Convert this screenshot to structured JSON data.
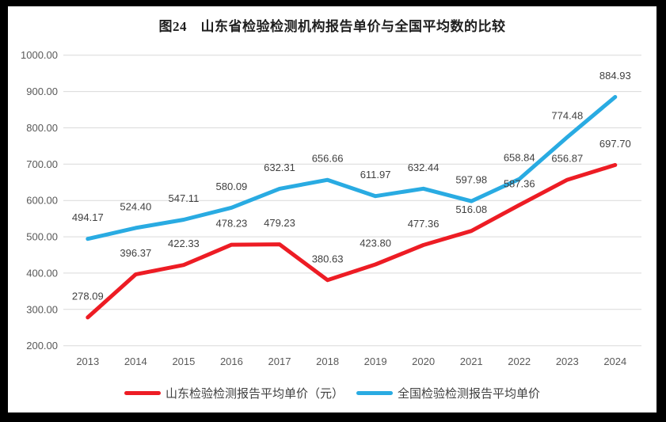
{
  "frame": {
    "border_color": "#000000",
    "chart_background": "#ffffff",
    "gridline_color": "#d9d9d9",
    "axis_text_color": "#595959",
    "label_text_color": "#404040"
  },
  "chart_data": {
    "type": "line",
    "title": "图24　山东省检验检测机构报告单价与全国平均数的比较",
    "categories": [
      "2013",
      "2014",
      "2015",
      "2016",
      "2017",
      "2018",
      "2019",
      "2020",
      "2021",
      "2022",
      "2023",
      "2024"
    ],
    "series": [
      {
        "name": "山东检验检测报告平均单价（元）",
        "color": "#ed1c24",
        "values": [
          278.09,
          396.37,
          422.33,
          478.23,
          479.23,
          380.63,
          423.8,
          477.36,
          516.08,
          587.36,
          656.87,
          697.7
        ]
      },
      {
        "name": "全国检验检测报告平均单价",
        "color": "#29abe2",
        "values": [
          494.17,
          524.4,
          547.11,
          580.09,
          632.31,
          656.66,
          611.97,
          632.44,
          597.98,
          658.84,
          774.48,
          884.93
        ]
      }
    ],
    "xlabel": "",
    "ylabel": "",
    "ylim": [
      200,
      1000
    ],
    "ytick_step": 100,
    "ytick_labels": [
      "200.00",
      "300.00",
      "400.00",
      "500.00",
      "600.00",
      "700.00",
      "800.00",
      "900.00",
      "1000.00"
    ],
    "grid": true,
    "data_labels": true,
    "label_decimals": 2,
    "legend_position": "bottom"
  }
}
